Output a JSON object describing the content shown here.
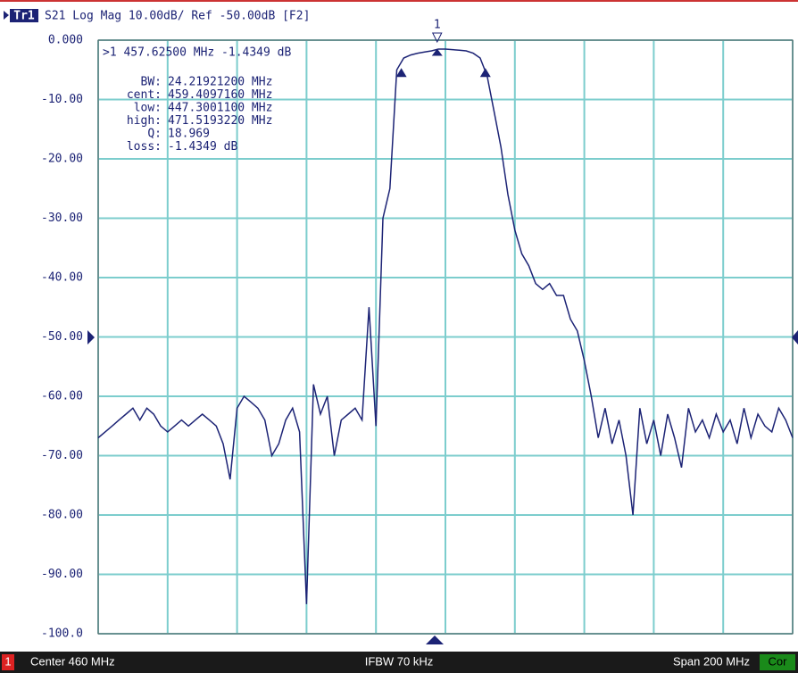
{
  "chart_data": {
    "type": "line",
    "title": "S21 Log Mag 10.00dB/ Ref -50.00dB [F2]",
    "x": [
      360,
      362,
      364,
      366,
      368,
      370,
      372,
      374,
      376,
      378,
      380,
      382,
      384,
      386,
      388,
      390,
      392,
      394,
      396,
      398,
      400,
      402,
      404,
      406,
      408,
      410,
      412,
      414,
      416,
      418,
      420,
      422,
      424,
      426,
      428,
      430,
      432,
      434,
      436,
      438,
      440,
      442,
      444,
      446,
      448,
      450,
      452,
      454,
      456,
      458,
      460,
      462,
      464,
      466,
      468,
      470,
      472,
      474,
      476,
      478,
      480,
      482,
      484,
      486,
      488,
      490,
      492,
      494,
      496,
      498,
      500,
      502,
      504,
      506,
      508,
      510,
      512,
      514,
      516,
      518,
      520,
      522,
      524,
      526,
      528,
      530,
      532,
      534,
      536,
      538,
      540,
      542,
      544,
      546,
      548,
      550,
      552,
      554,
      556,
      558,
      560
    ],
    "series": [
      {
        "name": "Tr1",
        "color": "#1c2375",
        "values": [
          -67,
          -66,
          -65,
          -64,
          -63,
          -62,
          -64,
          -62,
          -63,
          -65,
          -66,
          -65,
          -64,
          -65,
          -64,
          -63,
          -64,
          -65,
          -68,
          -74,
          -62,
          -60,
          -61,
          -62,
          -64,
          -70,
          -68,
          -64,
          -62,
          -66,
          -95,
          -58,
          -63,
          -60,
          -70,
          -64,
          -63,
          -62,
          -64,
          -45,
          -65,
          -30,
          -25,
          -5,
          -3,
          -2.5,
          -2.2,
          -2,
          -1.8,
          -1.5,
          -1.5,
          -1.6,
          -1.7,
          -1.8,
          -2.2,
          -3,
          -6,
          -12,
          -18,
          -26,
          -32,
          -36,
          -38,
          -41,
          -42,
          -41,
          -43,
          -43,
          -47,
          -49,
          -54,
          -60,
          -67,
          -62,
          -68,
          -64,
          -70,
          -80,
          -62,
          -68,
          -64,
          -70,
          -63,
          -67,
          -72,
          -62,
          -66,
          -64,
          -67,
          -63,
          -66,
          -64,
          -68,
          -62,
          -67,
          -63,
          -65,
          -66,
          -62,
          -64,
          -67
        ]
      }
    ],
    "xlim": [
      360,
      560
    ],
    "xticks": [
      360,
      380,
      400,
      420,
      440,
      460,
      480,
      500,
      520,
      540,
      560
    ],
    "ylim": [
      -100,
      0
    ],
    "yticks": [
      {
        "value": 0,
        "label": "0.000"
      },
      {
        "value": -10,
        "label": "-10.00"
      },
      {
        "value": -20,
        "label": "-20.00"
      },
      {
        "value": -30,
        "label": "-30.00"
      },
      {
        "value": -40,
        "label": "-40.00"
      },
      {
        "value": -50,
        "label": "-50.00"
      },
      {
        "value": -60,
        "label": "-60.00"
      },
      {
        "value": -70,
        "label": "-70.00"
      },
      {
        "value": -80,
        "label": "-80.00"
      },
      {
        "value": -90,
        "label": "-90.00"
      },
      {
        "value": -100,
        "label": "-100.0"
      }
    ],
    "grid": true,
    "markers": [
      {
        "label": "1",
        "x": 457.625,
        "y": -1.4349
      }
    ],
    "bw_markers": [
      {
        "x": 447.30011,
        "y": -4.4
      },
      {
        "x": 471.519322,
        "y": -4.4
      }
    ],
    "readout": ">1  457.62500 MHz -1.4349 dB",
    "stats": [
      [
        "BW:",
        "24.21921200 MHz"
      ],
      [
        "cent:",
        "459.4097160 MHz"
      ],
      [
        "low:",
        "447.3001100 MHz"
      ],
      [
        "high:",
        "471.5193220 MHz"
      ],
      [
        "Q:",
        "18.969"
      ],
      [
        "loss:",
        "-1.4349 dB"
      ]
    ],
    "footer": {
      "channel": "1",
      "center": "Center 460 MHz",
      "ifbw": "IFBW 70 kHz",
      "span": "Span 200 MHz",
      "cor": "Cor"
    }
  }
}
